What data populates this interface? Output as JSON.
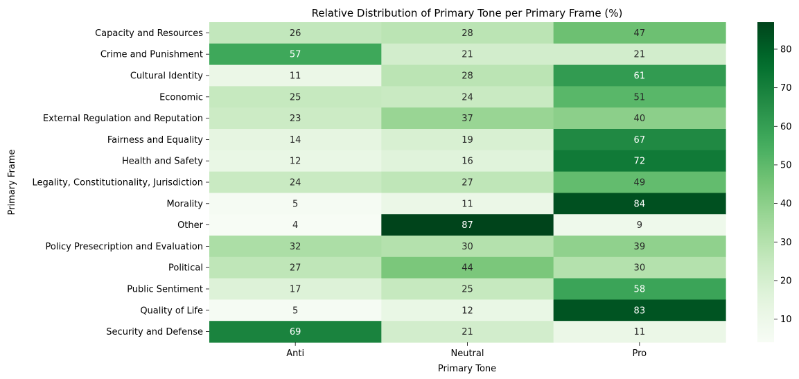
{
  "chart_data": {
    "type": "heatmap",
    "title": "Relative Distribution of Primary Tone per Primary Frame (%)",
    "xlabel": "Primary Tone",
    "ylabel": "Primary Frame",
    "x_categories": [
      "Anti",
      "Neutral",
      "Pro"
    ],
    "y_categories": [
      "Capacity and Resources",
      "Crime and Punishment",
      "Cultural Identity",
      "Economic",
      "External Regulation and Reputation",
      "Fairness and Equality",
      "Health and Safety",
      "Legality, Constitutionality, Jurisdiction",
      "Morality",
      "Other",
      "Policy Presecription and Evaluation",
      "Political",
      "Public Sentiment",
      "Quality of Life",
      "Security and Defense"
    ],
    "values": [
      [
        26,
        28,
        47
      ],
      [
        57,
        21,
        21
      ],
      [
        11,
        28,
        61
      ],
      [
        25,
        24,
        51
      ],
      [
        23,
        37,
        40
      ],
      [
        14,
        19,
        67
      ],
      [
        12,
        16,
        72
      ],
      [
        24,
        27,
        49
      ],
      [
        5,
        11,
        84
      ],
      [
        4,
        87,
        9
      ],
      [
        32,
        30,
        39
      ],
      [
        27,
        44,
        30
      ],
      [
        17,
        25,
        58
      ],
      [
        5,
        12,
        83
      ],
      [
        69,
        21,
        11
      ]
    ],
    "colormap": "Greens",
    "colorbar": {
      "range": [
        4,
        87
      ],
      "ticks": [
        "10",
        "20",
        "30",
        "40",
        "50",
        "60",
        "70",
        "80"
      ],
      "tick_values": [
        10,
        20,
        30,
        40,
        50,
        60,
        70,
        80
      ]
    },
    "grid": false,
    "legend": "none"
  }
}
